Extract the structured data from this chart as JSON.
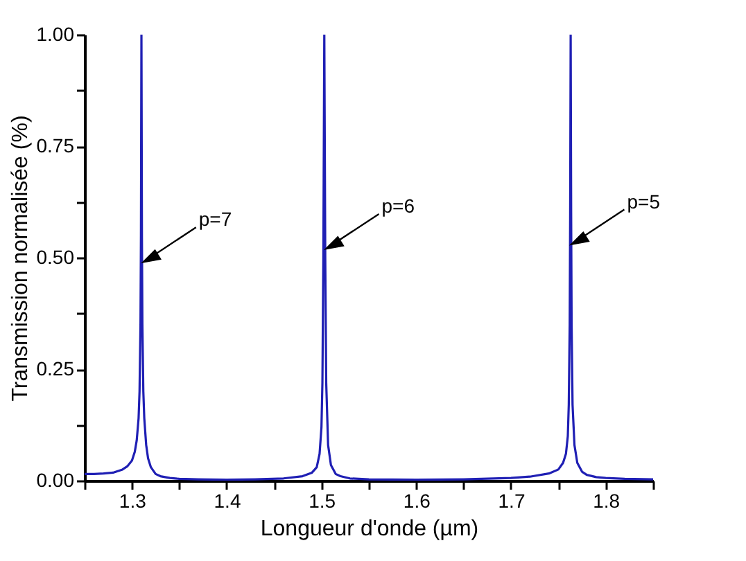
{
  "chart_data": {
    "type": "line",
    "xlabel": "Longueur d'onde (µm)",
    "ylabel": "Transmission normalisée (%)",
    "xlim": [
      1.25,
      1.85
    ],
    "ylim": [
      0,
      1
    ],
    "xticks": [
      1.3,
      1.4,
      1.5,
      1.6,
      1.7,
      1.8,
      {
        "value": 1.25,
        "label": null
      },
      {
        "value": 1.35,
        "label": null
      },
      {
        "value": 1.45,
        "label": null
      },
      {
        "value": 1.55,
        "label": null
      },
      {
        "value": 1.65,
        "label": null
      },
      {
        "value": 1.75,
        "label": null
      },
      {
        "value": 1.85,
        "label": null
      }
    ],
    "yticks": [
      {
        "value": 0,
        "label": "0.00"
      },
      {
        "value": 0.25,
        "label": "0.25"
      },
      {
        "value": 0.5,
        "label": "0.50"
      },
      {
        "value": 0.75,
        "label": "0.75"
      },
      {
        "value": 1,
        "label": "1.00"
      },
      {
        "value": 0.125,
        "label": null
      },
      {
        "value": 0.375,
        "label": null
      },
      {
        "value": 0.625,
        "label": null
      },
      {
        "value": 0.875,
        "label": null
      }
    ],
    "grid": false,
    "marker": "none",
    "line_style": "solid",
    "series": [
      {
        "color": "#1f1fb4",
        "x": [
          1.25,
          1.26,
          1.27,
          1.28,
          1.29,
          1.295,
          1.3,
          1.303,
          1.305,
          1.307,
          1.308,
          1.309,
          1.3095,
          1.31,
          1.3105,
          1.311,
          1.312,
          1.313,
          1.315,
          1.317,
          1.32,
          1.325,
          1.33,
          1.34,
          1.35,
          1.37,
          1.4,
          1.43,
          1.46,
          1.48,
          1.49,
          1.495,
          1.498,
          1.5,
          1.501,
          1.502,
          1.5025,
          1.503,
          1.5035,
          1.504,
          1.505,
          1.507,
          1.51,
          1.515,
          1.52,
          1.53,
          1.55,
          1.6,
          1.65,
          1.7,
          1.72,
          1.74,
          1.75,
          1.755,
          1.758,
          1.76,
          1.761,
          1.762,
          1.7625,
          1.763,
          1.7635,
          1.764,
          1.765,
          1.767,
          1.77,
          1.775,
          1.78,
          1.79,
          1.8,
          1.82,
          1.85
        ],
        "values": [
          0.015,
          0.015,
          0.016,
          0.018,
          0.025,
          0.032,
          0.045,
          0.065,
          0.09,
          0.14,
          0.2,
          0.35,
          0.55,
          1.0,
          0.55,
          0.35,
          0.2,
          0.14,
          0.08,
          0.05,
          0.03,
          0.015,
          0.01,
          0.006,
          0.004,
          0.003,
          0.002,
          0.003,
          0.005,
          0.01,
          0.018,
          0.03,
          0.06,
          0.12,
          0.22,
          0.5,
          0.75,
          1.0,
          0.75,
          0.5,
          0.22,
          0.08,
          0.035,
          0.015,
          0.01,
          0.005,
          0.003,
          0.002,
          0.003,
          0.006,
          0.009,
          0.016,
          0.025,
          0.04,
          0.06,
          0.1,
          0.17,
          0.35,
          0.6,
          1.0,
          0.6,
          0.35,
          0.17,
          0.08,
          0.04,
          0.02,
          0.013,
          0.008,
          0.006,
          0.004,
          0.003
        ]
      }
    ],
    "annotations": [
      {
        "text": "p=7",
        "x": 1.312,
        "y": 0.49
      },
      {
        "text": "p=6",
        "x": 1.505,
        "y": 0.52
      },
      {
        "text": "p=5",
        "x": 1.764,
        "y": 0.53
      }
    ]
  }
}
